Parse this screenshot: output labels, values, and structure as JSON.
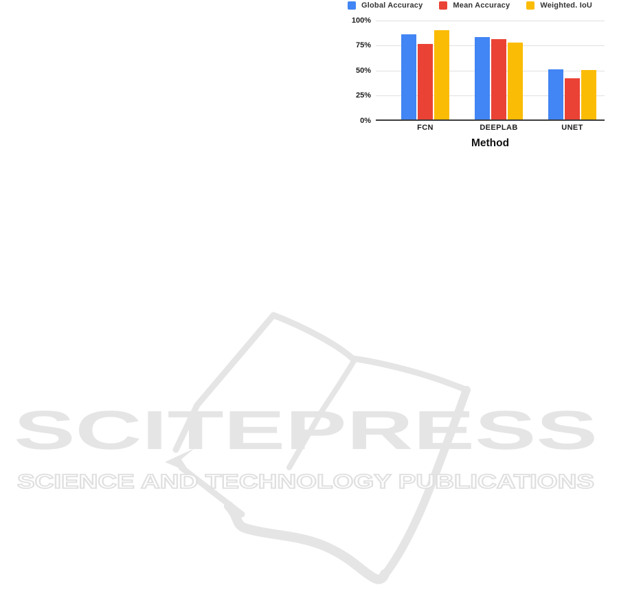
{
  "chart_data": {
    "type": "bar",
    "title": "",
    "xlabel": "Method",
    "ylabel": "",
    "categories": [
      "FCN",
      "DEEPLAB",
      "UNET"
    ],
    "series": [
      {
        "name": "Global Accuracy",
        "color": "#4285F4",
        "values": [
          86,
          83,
          51
        ]
      },
      {
        "name": "Mean Accuracy",
        "color": "#EA4335",
        "values": [
          76,
          81,
          42
        ]
      },
      {
        "name": "Weighted. IoU",
        "color": "#FBBC05",
        "values": [
          90,
          78,
          50
        ]
      }
    ],
    "y_tick_labels": [
      "100%",
      "75%",
      "50%",
      "25%",
      "0%"
    ],
    "ylim": [
      0,
      100
    ],
    "grid": true,
    "legend_position": "top",
    "colors": {
      "grid_line": "#e0e0e0",
      "axis_line": "#3c3c3c",
      "tick_label": "#1c1c1c"
    }
  },
  "watermark": {
    "title": "SCITEPRESS",
    "subtitle": "SCIENCE AND TECHNOLOGY PUBLICATIONS",
    "color": "#e5e5e5"
  }
}
